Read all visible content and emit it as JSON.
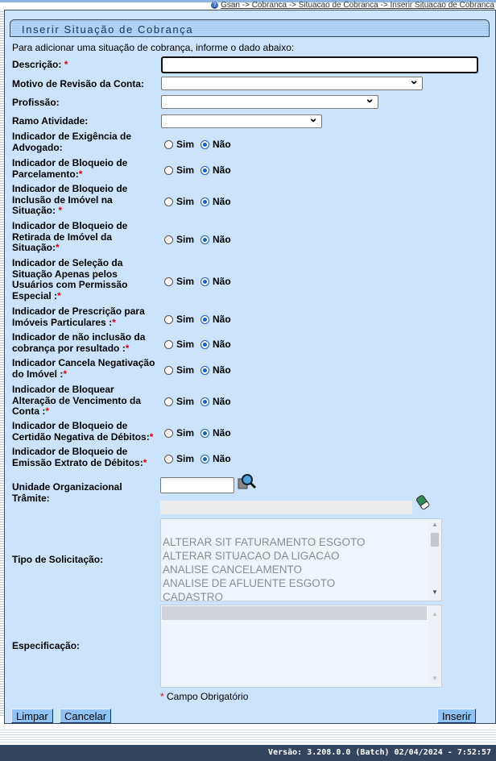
{
  "breadcrumb": "Gsan -> Cobranca -> Situacao de Cobranca -> Inserir Situacao de Cobranca",
  "title": "Inserir Situação de Cobrança",
  "intro": "Para adicionar uma situação de cobrança, informe o dado abaixo:",
  "fields": {
    "descricao": "Descrição:",
    "motivo": "Motivo de Revisão da Conta:",
    "profissao": "Profissão:",
    "ramo": "Ramo Atividade:",
    "unidade": "Unidade Organizacional Trâmite:",
    "tipo": "Tipo de Solicitação:",
    "especificacao": "Especificação:"
  },
  "required_mark": "*",
  "radio_yes": "Sim",
  "radio_no": "Não",
  "indicators": [
    {
      "label": "Indicador de Exigência de Advogado:",
      "required": false,
      "value": "Não"
    },
    {
      "label": "Indicador de Bloqueio de Parcelamento:",
      "required": true,
      "value": "Não"
    },
    {
      "label": "Indicador de Bloqueio de Inclusão de Imóvel na Situação: ",
      "required": true,
      "value": "Não"
    },
    {
      "label": "Indicador de Bloqueio de Retirada de Imóvel da Situação:",
      "required": true,
      "value": "Não"
    },
    {
      "label": "Indicador de Seleção da Situação Apenas pelos Usuários com Permissão Especial :",
      "required": true,
      "value": "Não"
    },
    {
      "label": "Indicador de Prescrição para Imóveis Particulares :",
      "required": true,
      "value": "Não"
    },
    {
      "label": "Indicador de não inclusão da cobrança por resultado :",
      "required": true,
      "value": "Não"
    },
    {
      "label": "Indicador Cancela Negativação do Imóvel :",
      "required": true,
      "value": "Não"
    },
    {
      "label": "Indicador de Bloquear Alteração de Vencimento da Conta :",
      "required": true,
      "value": "Não"
    },
    {
      "label": "Indicador de Bloqueio de Certidão Negativa de Débitos:",
      "required": true,
      "value": "Não"
    },
    {
      "label": "Indicador de Bloqueio de Emissão Extrato de Débitos:",
      "required": true,
      "value": "Não"
    }
  ],
  "tipo_options": [
    "",
    "ALTERAR SIT FATURAMENTO ESGOTO",
    "ALTERAR SITUACAO DA LIGACAO",
    "ANALISE CANCELAMENTO",
    "ANALISE DE AFLUENTE ESGOTO",
    "CADASTRO"
  ],
  "required_note": "Campo Obrigatório",
  "buttons": {
    "limpar": "Limpar",
    "cancelar": "Cancelar",
    "inserir": "Inserir"
  },
  "footer": "Versão: 3.208.0.0 (Batch) 02/04/2024 - 7:52:57"
}
